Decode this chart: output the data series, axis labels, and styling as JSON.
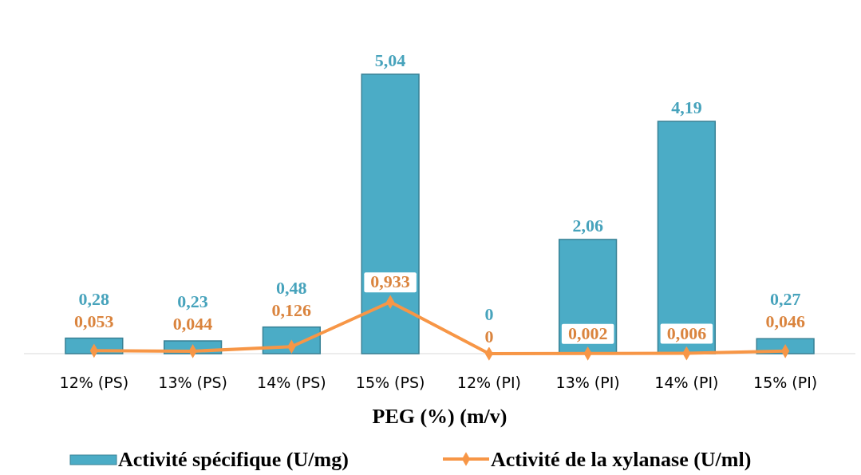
{
  "chart_data": {
    "type": "bar",
    "xlabel": "PEG (%) (m/v)",
    "categories": [
      "12% (PS)",
      "13% (PS)",
      "14% (PS)",
      "15% (PS)",
      "12% (PI)",
      "13% (PI)",
      "14% (PI)",
      "15% (PI)"
    ],
    "series": [
      {
        "type": "bar",
        "name": "Activité spécifique  (U/mg)",
        "color": "#4bacc6",
        "values": [
          0.28,
          0.23,
          0.48,
          5.04,
          0,
          2.06,
          4.19,
          0.27
        ],
        "value_labels": [
          "0,28",
          "0,23",
          "0,48",
          "5,04",
          "0",
          "2,06",
          "4,19",
          "0,27"
        ]
      },
      {
        "type": "line",
        "name": "Activité de la xylanase  (U/ml)",
        "color": "#f79646",
        "values": [
          0.053,
          0.044,
          0.126,
          0.933,
          0,
          0.002,
          0.006,
          0.046
        ],
        "value_labels": [
          "0,053",
          "0,044",
          "0,126",
          "0,933",
          "0",
          "0,002",
          "0,006",
          "0,046"
        ],
        "marker": "diamond"
      }
    ],
    "legend": "bottom",
    "grid": false
  }
}
